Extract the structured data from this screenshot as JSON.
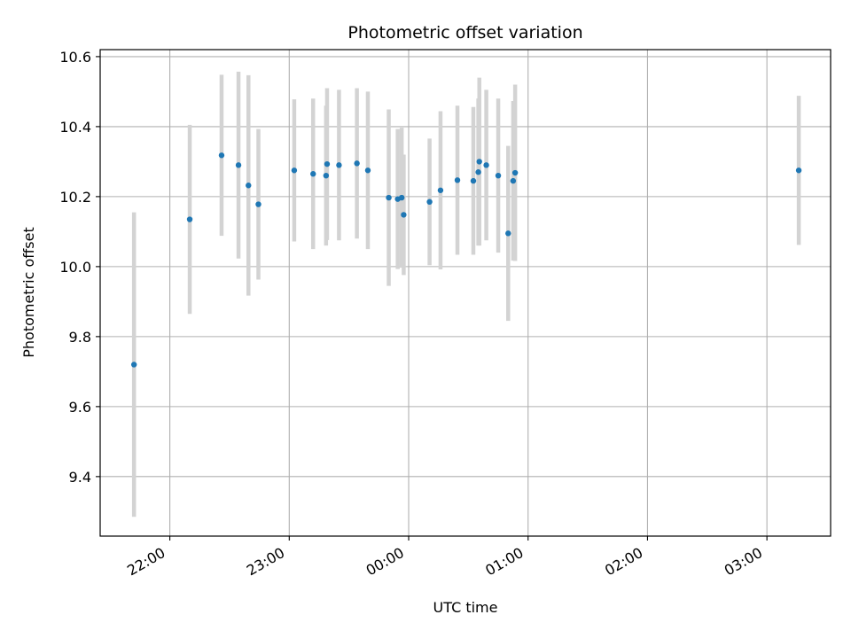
{
  "chart_data": {
    "type": "scatter",
    "title": "Photometric offset variation",
    "xlabel": "UTC time",
    "ylabel": "Photometric offset",
    "x_unit": "minutes after 00:00 UTC",
    "xlim": [
      -155,
      212
    ],
    "ylim": [
      9.23,
      10.62
    ],
    "x_ticks": [
      {
        "value": -120,
        "label": "22:00"
      },
      {
        "value": -60,
        "label": "23:00"
      },
      {
        "value": 0,
        "label": "00:00"
      },
      {
        "value": 60,
        "label": "01:00"
      },
      {
        "value": 120,
        "label": "02:00"
      },
      {
        "value": 180,
        "label": "03:00"
      }
    ],
    "y_ticks": [
      9.4,
      9.6,
      9.8,
      10.0,
      10.2,
      10.4,
      10.6
    ],
    "y_tick_labels": [
      "9.4",
      "9.6",
      "9.8",
      "10.0",
      "10.2",
      "10.4",
      "10.6"
    ],
    "grid": true,
    "colors": {
      "point": "#1f77b4",
      "errorbar": "#d3d3d3",
      "grid": "#b0b0b0",
      "axes": "#000000"
    },
    "points": [
      {
        "x": -138.0,
        "y": 9.72,
        "err_low": 9.285,
        "err_high": 10.155
      },
      {
        "x": -110.0,
        "y": 10.135,
        "err_low": 9.865,
        "err_high": 10.405
      },
      {
        "x": -94.0,
        "y": 10.318,
        "err_low": 10.088,
        "err_high": 10.548
      },
      {
        "x": -85.5,
        "y": 10.29,
        "err_low": 10.023,
        "err_high": 10.557
      },
      {
        "x": -80.5,
        "y": 10.232,
        "err_low": 9.917,
        "err_high": 10.547
      },
      {
        "x": -75.5,
        "y": 10.178,
        "err_low": 9.963,
        "err_high": 10.393
      },
      {
        "x": -57.5,
        "y": 10.275,
        "err_low": 10.072,
        "err_high": 10.478
      },
      {
        "x": -48.0,
        "y": 10.265,
        "err_low": 10.05,
        "err_high": 10.48
      },
      {
        "x": -41.5,
        "y": 10.26,
        "err_low": 10.06,
        "err_high": 10.46
      },
      {
        "x": -41.0,
        "y": 10.293,
        "err_low": 10.076,
        "err_high": 10.51
      },
      {
        "x": -35.0,
        "y": 10.29,
        "err_low": 10.075,
        "err_high": 10.505
      },
      {
        "x": -26.0,
        "y": 10.295,
        "err_low": 10.08,
        "err_high": 10.51
      },
      {
        "x": -20.5,
        "y": 10.275,
        "err_low": 10.05,
        "err_high": 10.5
      },
      {
        "x": -10.0,
        "y": 10.197,
        "err_low": 9.945,
        "err_high": 10.449
      },
      {
        "x": -5.5,
        "y": 10.193,
        "err_low": 9.993,
        "err_high": 10.393
      },
      {
        "x": -3.5,
        "y": 10.197,
        "err_low": 9.997,
        "err_high": 10.397
      },
      {
        "x": -2.5,
        "y": 10.148,
        "err_low": 9.976,
        "err_high": 10.32
      },
      {
        "x": 10.5,
        "y": 10.185,
        "err_low": 10.004,
        "err_high": 10.366
      },
      {
        "x": 16.0,
        "y": 10.218,
        "err_low": 9.992,
        "err_high": 10.444
      },
      {
        "x": 24.5,
        "y": 10.247,
        "err_low": 10.034,
        "err_high": 10.46
      },
      {
        "x": 32.5,
        "y": 10.245,
        "err_low": 10.034,
        "err_high": 10.456
      },
      {
        "x": 35.0,
        "y": 10.27,
        "err_low": 10.06,
        "err_high": 10.48
      },
      {
        "x": 35.5,
        "y": 10.3,
        "err_low": 10.06,
        "err_high": 10.54
      },
      {
        "x": 39.0,
        "y": 10.29,
        "err_low": 10.075,
        "err_high": 10.505
      },
      {
        "x": 45.0,
        "y": 10.26,
        "err_low": 10.04,
        "err_high": 10.48
      },
      {
        "x": 50.0,
        "y": 10.095,
        "err_low": 9.845,
        "err_high": 10.345
      },
      {
        "x": 52.5,
        "y": 10.245,
        "err_low": 10.017,
        "err_high": 10.473
      },
      {
        "x": 53.5,
        "y": 10.268,
        "err_low": 10.016,
        "err_high": 10.52
      },
      {
        "x": 196.0,
        "y": 10.275,
        "err_low": 10.062,
        "err_high": 10.488
      }
    ]
  }
}
